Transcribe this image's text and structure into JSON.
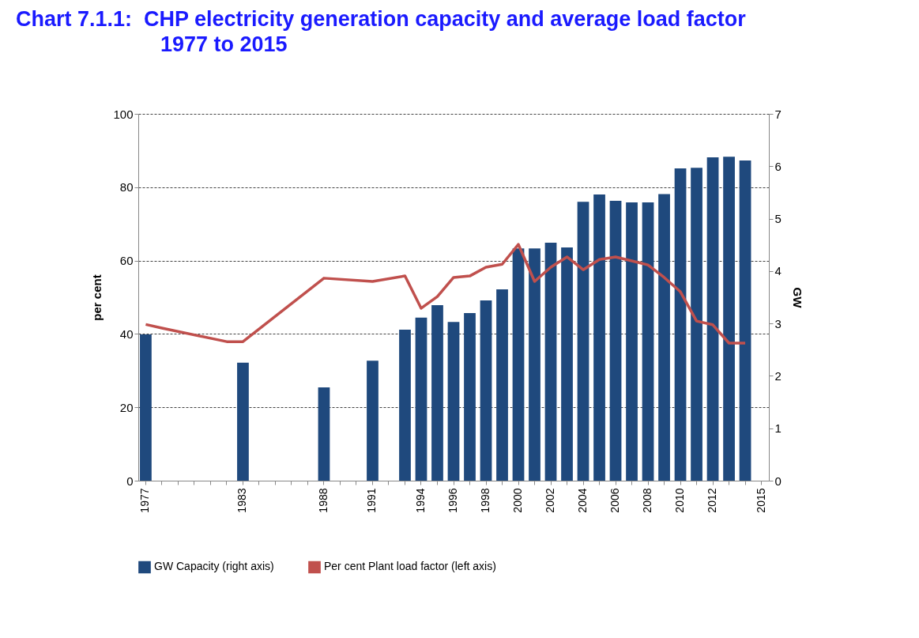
{
  "chart_data": {
    "type": "bar",
    "title": "Chart 7.1.1:  CHP electricity generation capacity and average load factor\n1977 to 2015",
    "categories": [
      "1977",
      null,
      null,
      null,
      null,
      null,
      "1983",
      null,
      null,
      null,
      null,
      "1988",
      null,
      null,
      "1991",
      null,
      null,
      "1994",
      null,
      "1996",
      null,
      "1998",
      null,
      "2000",
      null,
      "2002",
      null,
      "2004",
      null,
      "2006",
      null,
      "2008",
      null,
      "2010",
      null,
      "2012",
      null,
      null,
      "2015"
    ],
    "ylabel": "per cent",
    "y2label": "GW",
    "series": [
      {
        "name": "GW Capacity (right axis)",
        "axis": "y2",
        "color": "#1f497d",
        "values": [
          2.79,
          null,
          null,
          null,
          null,
          null,
          2.25,
          null,
          null,
          null,
          null,
          1.78,
          null,
          null,
          2.29,
          null,
          2.88,
          3.11,
          3.35,
          3.03,
          3.2,
          3.44,
          3.65,
          4.43,
          4.43,
          4.54,
          4.45,
          5.32,
          5.46,
          5.34,
          5.31,
          5.31,
          5.47,
          5.96,
          5.97,
          6.17,
          6.18,
          6.11,
          null
        ]
      },
      {
        "name": "Per cent Plant load factor (left axis)",
        "type": "line",
        "color": "#c0504d",
        "values": [
          42.6,
          41.6,
          null,
          null,
          null,
          37.9,
          37.9,
          null,
          null,
          null,
          null,
          55.2,
          null,
          null,
          54.3,
          null,
          55.8,
          47,
          50.2,
          55.4,
          55.8,
          58.2,
          59,
          64.4,
          54.3,
          58.2,
          61,
          57.5,
          60.3,
          61,
          59.9,
          58.8,
          55.4,
          51.5,
          43.5,
          42.5,
          37.5,
          37.5,
          null
        ]
      }
    ],
    "ylim": [
      0,
      100
    ],
    "yticks": [
      0,
      20,
      40,
      60,
      80,
      100
    ],
    "y2lim": [
      0,
      7
    ],
    "y2ticks": [
      0,
      1,
      2,
      3,
      4,
      5,
      6,
      7
    ],
    "grid": "y",
    "legend": "bottom"
  }
}
